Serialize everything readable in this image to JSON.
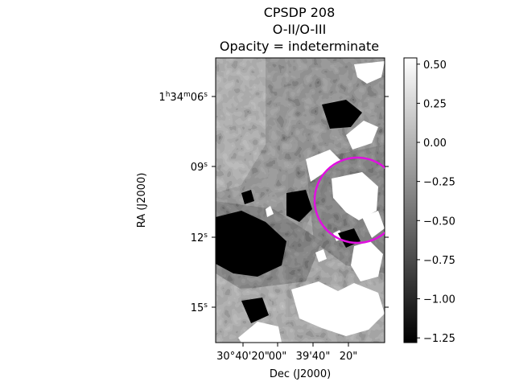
{
  "title": {
    "line1": "CPSDP 208",
    "line2": "O-II/O-III",
    "line3": "Opacity = indeterminate"
  },
  "axes": {
    "xlabel": "Dec (J2000)",
    "ylabel": "RA (J2000)",
    "x_ticks": [
      "30°40'20\"",
      "00\"",
      "39'40\"",
      "20\""
    ],
    "y_ticks": [
      {
        "main": "1",
        "sup1": "h",
        "mid": "34",
        "sup2": "m",
        "end": "06",
        "sup3": "s"
      },
      {
        "main": "09",
        "sup3": "s"
      },
      {
        "main": "12",
        "sup3": "s"
      },
      {
        "main": "15",
        "sup3": "s"
      }
    ]
  },
  "colorbar": {
    "ticks": [
      "0.50",
      "0.25",
      "0.00",
      "−0.25",
      "−0.50",
      "−0.75",
      "−1.00",
      "−1.25"
    ],
    "range": [
      -1.28,
      0.54
    ],
    "colormap": "grayscale"
  },
  "overlay": {
    "shape": "circle",
    "color": "#e010e0"
  }
}
